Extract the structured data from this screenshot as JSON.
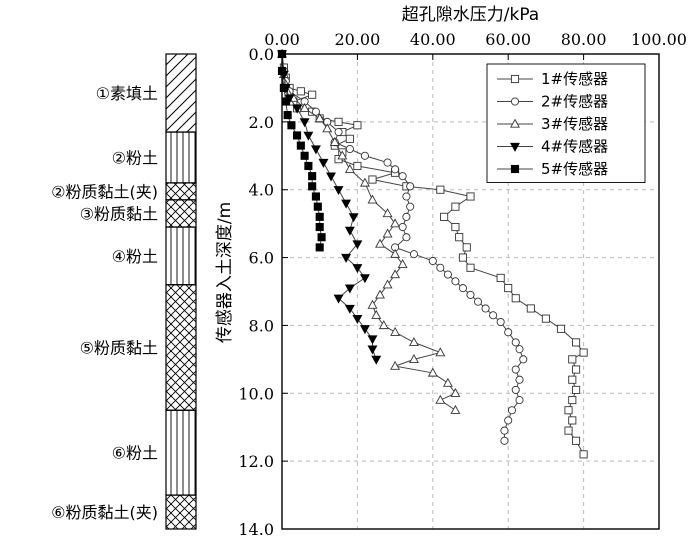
{
  "chart_data": {
    "type": "line",
    "title": "",
    "xlabel": "超孔隙水压力/kPa",
    "ylabel": "传感器入土深度/m",
    "xlim": [
      0,
      100
    ],
    "ylim": [
      0,
      14
    ],
    "y_inverted": true,
    "x_ticks": [
      "0.00",
      "20.00",
      "40.00",
      "60.00",
      "80.00",
      "100.00"
    ],
    "y_ticks": [
      "0.0",
      "2.0",
      "4.0",
      "6.0",
      "8.0",
      "10.0",
      "12.0",
      "14.0"
    ],
    "grid": "dashed",
    "legend_position": "top-right",
    "series": [
      {
        "name": "1#传感器",
        "marker": "square-open",
        "points": [
          [
            0,
            0
          ],
          [
            0.5,
            0.4
          ],
          [
            1,
            0.7
          ],
          [
            2,
            1
          ],
          [
            5,
            1.1
          ],
          [
            8,
            1.2
          ],
          [
            3,
            1.4
          ],
          [
            4,
            1.6
          ],
          [
            8,
            1.7
          ],
          [
            10,
            1.9
          ],
          [
            15,
            2
          ],
          [
            20,
            2.1
          ],
          [
            16,
            2.3
          ],
          [
            18,
            2.5
          ],
          [
            14,
            2.7
          ],
          [
            16,
            2.9
          ],
          [
            15,
            3.1
          ],
          [
            20,
            3.3
          ],
          [
            30,
            3.5
          ],
          [
            24,
            3.7
          ],
          [
            33,
            3.9
          ],
          [
            42,
            4
          ],
          [
            50,
            4.2
          ],
          [
            46,
            4.5
          ],
          [
            43,
            4.8
          ],
          [
            46,
            5.1
          ],
          [
            47,
            5.4
          ],
          [
            49,
            5.7
          ],
          [
            48,
            6
          ],
          [
            50,
            6.3
          ],
          [
            58,
            6.6
          ],
          [
            60,
            6.9
          ],
          [
            62,
            7.2
          ],
          [
            66,
            7.5
          ],
          [
            70,
            7.8
          ],
          [
            74,
            8.1
          ],
          [
            78,
            8.5
          ],
          [
            80,
            8.8
          ],
          [
            77,
            9
          ],
          [
            78,
            9.3
          ],
          [
            77,
            9.6
          ],
          [
            78,
            9.9
          ],
          [
            77,
            10.2
          ],
          [
            76,
            10.5
          ],
          [
            77,
            10.8
          ],
          [
            76,
            11.1
          ],
          [
            78,
            11.4
          ],
          [
            80,
            11.8
          ]
        ]
      },
      {
        "name": "2#传感器",
        "marker": "circle-open",
        "points": [
          [
            0,
            0
          ],
          [
            0.5,
            0.5
          ],
          [
            1,
            0.8
          ],
          [
            2,
            1.1
          ],
          [
            6,
            1.4
          ],
          [
            9,
            1.7
          ],
          [
            12,
            2
          ],
          [
            15,
            2.3
          ],
          [
            14,
            2.6
          ],
          [
            18,
            2.8
          ],
          [
            22,
            3
          ],
          [
            28,
            3.2
          ],
          [
            30,
            3.4
          ],
          [
            32,
            3.6
          ],
          [
            34,
            3.9
          ],
          [
            33,
            4.2
          ],
          [
            34,
            4.5
          ],
          [
            33,
            4.8
          ],
          [
            32,
            5.1
          ],
          [
            33,
            5.4
          ],
          [
            30,
            5.7
          ],
          [
            35,
            5.9
          ],
          [
            40,
            6.1
          ],
          [
            42,
            6.3
          ],
          [
            44,
            6.5
          ],
          [
            46,
            6.7
          ],
          [
            48,
            6.9
          ],
          [
            50,
            7.1
          ],
          [
            52,
            7.3
          ],
          [
            54,
            7.5
          ],
          [
            56,
            7.7
          ],
          [
            58,
            7.9
          ],
          [
            60,
            8.2
          ],
          [
            62,
            8.5
          ],
          [
            63,
            8.7
          ],
          [
            64,
            9
          ],
          [
            62,
            9.3
          ],
          [
            63,
            9.6
          ],
          [
            62,
            9.9
          ],
          [
            63,
            10.2
          ],
          [
            61,
            10.5
          ],
          [
            60,
            10.8
          ],
          [
            59,
            11.1
          ],
          [
            59,
            11.4
          ]
        ]
      },
      {
        "name": "3#传感器",
        "marker": "triangle-open",
        "points": [
          [
            0,
            0
          ],
          [
            0.5,
            0.6
          ],
          [
            1,
            0.9
          ],
          [
            3,
            1.3
          ],
          [
            6,
            1.6
          ],
          [
            10,
            1.9
          ],
          [
            12,
            2.2
          ],
          [
            14,
            2.6
          ],
          [
            16,
            3
          ],
          [
            18,
            3.4
          ],
          [
            22,
            3.8
          ],
          [
            24,
            4.3
          ],
          [
            28,
            4.7
          ],
          [
            30,
            5
          ],
          [
            28,
            5.3
          ],
          [
            26,
            5.6
          ],
          [
            30,
            5.9
          ],
          [
            32,
            6.2
          ],
          [
            30,
            6.5
          ],
          [
            28,
            6.8
          ],
          [
            26,
            7.1
          ],
          [
            24,
            7.4
          ],
          [
            25,
            7.7
          ],
          [
            27,
            8
          ],
          [
            30,
            8.2
          ],
          [
            35,
            8.5
          ],
          [
            42,
            8.8
          ],
          [
            35,
            9
          ],
          [
            30,
            9.2
          ],
          [
            40,
            9.4
          ],
          [
            44,
            9.7
          ],
          [
            46,
            10
          ],
          [
            42,
            10.2
          ],
          [
            46,
            10.5
          ]
        ]
      },
      {
        "name": "4#传感器",
        "marker": "triangle-down-filled",
        "points": [
          [
            0,
            0
          ],
          [
            0.5,
            0.6
          ],
          [
            1,
            1
          ],
          [
            2,
            1.3
          ],
          [
            4,
            1.6
          ],
          [
            6,
            2
          ],
          [
            7,
            2.4
          ],
          [
            9,
            2.8
          ],
          [
            11,
            3.2
          ],
          [
            13,
            3.6
          ],
          [
            15,
            4
          ],
          [
            17,
            4.4
          ],
          [
            19,
            4.8
          ],
          [
            18,
            5.2
          ],
          [
            20,
            5.6
          ],
          [
            17,
            6
          ],
          [
            20,
            6.3
          ],
          [
            22,
            6.6
          ],
          [
            18,
            6.9
          ],
          [
            15,
            7.2
          ],
          [
            18,
            7.5
          ],
          [
            20,
            7.8
          ],
          [
            22,
            8.1
          ],
          [
            24,
            8.4
          ],
          [
            24,
            8.7
          ],
          [
            25,
            9
          ]
        ]
      },
      {
        "name": "5#传感器",
        "marker": "square-filled",
        "points": [
          [
            0,
            0
          ],
          [
            0,
            0.5
          ],
          [
            0.5,
            1
          ],
          [
            1,
            1.4
          ],
          [
            1.5,
            1.8
          ],
          [
            2.5,
            2.1
          ],
          [
            4,
            2.4
          ],
          [
            5,
            2.7
          ],
          [
            6,
            3
          ],
          [
            7,
            3.3
          ],
          [
            8,
            3.6
          ],
          [
            8,
            3.9
          ],
          [
            9,
            4.2
          ],
          [
            9.5,
            4.5
          ],
          [
            10,
            4.8
          ],
          [
            10,
            5.1
          ],
          [
            10.5,
            5.4
          ],
          [
            10,
            5.7
          ]
        ]
      }
    ]
  },
  "layers": {
    "title": "",
    "items": [
      {
        "label": "①素填土",
        "from": 0,
        "to": 2.3,
        "pattern": "diagonal"
      },
      {
        "label": "②粉土",
        "from": 2.3,
        "to": 3.8,
        "pattern": "vertical"
      },
      {
        "label": "②粉质黏土(夹)",
        "from": 3.8,
        "to": 4.3,
        "pattern": "cross"
      },
      {
        "label": "③粉质黏土",
        "from": 4.3,
        "to": 5.1,
        "pattern": "cross"
      },
      {
        "label": "④粉土",
        "from": 5.1,
        "to": 6.8,
        "pattern": "vertical"
      },
      {
        "label": "⑤粉质黏土",
        "from": 6.8,
        "to": 10.5,
        "pattern": "cross"
      },
      {
        "label": "⑥粉土",
        "from": 10.5,
        "to": 13.0,
        "pattern": "vertical"
      },
      {
        "label": "⑥粉质黏土(夹)",
        "from": 13.0,
        "to": 14.0,
        "pattern": "cross"
      }
    ]
  }
}
